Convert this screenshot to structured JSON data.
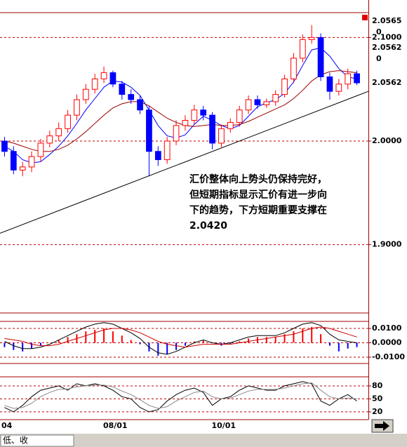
{
  "chart_data": [
    {
      "type": "candlestick",
      "categories": [
        "04",
        null,
        null,
        null,
        null,
        null,
        null,
        null,
        null,
        null,
        null,
        null,
        "08/01",
        null,
        null,
        null,
        null,
        null,
        null,
        null,
        null,
        null,
        null,
        null,
        "10/01",
        null,
        null,
        null,
        null,
        null,
        null,
        null,
        null,
        null,
        null,
        null,
        null,
        null,
        null,
        null
      ],
      "open": [
        2.0,
        1.99,
        1.972,
        1.975,
        1.985,
        1.998,
        2.005,
        2.012,
        2.025,
        2.04,
        2.05,
        2.06,
        2.066,
        2.055,
        2.045,
        2.04,
        2.03,
        1.99,
        1.982,
        2.0,
        2.015,
        2.02,
        2.03,
        2.025,
        1.998,
        2.012,
        2.018,
        2.03,
        2.04,
        2.035,
        2.038,
        2.045,
        2.06,
        2.08,
        2.098,
        2.1,
        2.062,
        2.048,
        2.055,
        2.065
      ],
      "high": [
        2.004,
        1.995,
        1.98,
        1.99,
        2.002,
        2.01,
        2.018,
        2.03,
        2.045,
        2.055,
        2.065,
        2.072,
        2.068,
        2.058,
        2.05,
        2.044,
        2.034,
        1.995,
        2.004,
        2.02,
        2.025,
        2.035,
        2.034,
        2.028,
        2.016,
        2.022,
        2.034,
        2.044,
        2.044,
        2.041,
        2.049,
        2.064,
        2.085,
        2.103,
        2.112,
        2.104,
        2.066,
        2.06,
        2.07,
        2.068
      ],
      "low": [
        1.985,
        1.968,
        1.966,
        1.97,
        1.98,
        1.994,
        2.0,
        2.008,
        2.02,
        2.036,
        2.046,
        2.056,
        2.052,
        2.04,
        2.036,
        2.026,
        1.966,
        1.976,
        1.978,
        1.996,
        2.01,
        2.016,
        2.02,
        1.992,
        1.994,
        2.008,
        2.014,
        2.026,
        2.031,
        2.032,
        2.034,
        2.042,
        2.056,
        2.076,
        2.094,
        2.058,
        2.04,
        2.044,
        2.05,
        2.054
      ],
      "close": [
        1.99,
        1.972,
        1.975,
        1.985,
        1.998,
        2.005,
        2.012,
        2.025,
        2.04,
        2.05,
        2.06,
        2.066,
        2.055,
        2.045,
        2.04,
        2.03,
        1.99,
        1.982,
        2.0,
        2.015,
        2.02,
        2.03,
        2.025,
        1.998,
        2.012,
        2.018,
        2.03,
        2.04,
        2.035,
        2.038,
        2.045,
        2.06,
        2.08,
        2.098,
        2.1,
        2.062,
        2.048,
        2.055,
        2.065,
        2.0562
      ],
      "up_color": "#ff0000",
      "down_color": "#0000ff",
      "lines": [
        {
          "color": "#0000ff",
          "values": [
            1.995,
            1.99,
            1.982,
            1.979,
            1.98,
            1.987,
            1.995,
            2.005,
            2.017,
            2.03,
            2.041,
            2.052,
            2.058,
            2.057,
            2.052,
            2.044,
            2.03,
            2.015,
            2.005,
            2.003,
            2.006,
            2.016,
            2.024,
            2.02,
            2.015,
            2.012,
            2.015,
            2.024,
            2.033,
            2.037,
            2.04,
            2.046,
            2.057,
            2.073,
            2.088,
            2.09,
            2.082,
            2.07,
            2.062,
            2.06
          ]
        },
        {
          "color": "#990000",
          "values": [
            2.0,
            1.998,
            1.995,
            1.992,
            1.99,
            1.99,
            1.992,
            1.996,
            2.002,
            2.009,
            2.017,
            2.025,
            2.032,
            2.036,
            2.038,
            2.038,
            2.034,
            2.028,
            2.022,
            2.018,
            2.015,
            2.014,
            2.015,
            2.016,
            2.015,
            2.015,
            2.016,
            2.019,
            2.023,
            2.027,
            2.031,
            2.035,
            2.041,
            2.049,
            2.058,
            2.064,
            2.067,
            2.068,
            2.067,
            2.066
          ]
        }
      ],
      "trendline": [
        1.911,
        2.048
      ],
      "ylim": [
        1.834,
        2.124
      ],
      "yticks": [
        {
          "value": 2.1,
          "label": "2.1000"
        },
        {
          "value": 2.0,
          "label": "2.0000"
        },
        {
          "value": 1.9,
          "label": "1.9000"
        }
      ],
      "readouts": [
        2.0565,
        0,
        2.0562,
        0,
        2.0562
      ],
      "annotation": [
        "汇价整体向上势头仍保持完好，",
        "但短期指标显示汇价有进一步向",
        "下的趋势，下方短期重要支撑在",
        "2.0420"
      ]
    },
    {
      "type": "macd",
      "histogram": [
        -0.003,
        -0.005,
        -0.006,
        -0.004,
        -0.002,
        0.0,
        0.002,
        0.004,
        0.006,
        0.008,
        0.009,
        0.01,
        0.008,
        0.005,
        0.002,
        -0.001,
        -0.006,
        -0.009,
        -0.008,
        -0.005,
        -0.002,
        0.001,
        0.002,
        0.0,
        -0.002,
        -0.001,
        0.001,
        0.003,
        0.004,
        0.004,
        0.004,
        0.006,
        0.008,
        0.01,
        0.011,
        0.006,
        -0.002,
        -0.006,
        -0.004,
        -0.003
      ],
      "up_color": "#ff0000",
      "down_color": "#0000ff",
      "lines": [
        {
          "color": "#000000",
          "values": [
            0.001,
            -0.002,
            -0.004,
            -0.004,
            -0.003,
            -0.001,
            0.002,
            0.005,
            0.008,
            0.011,
            0.013,
            0.014,
            0.013,
            0.01,
            0.007,
            0.003,
            -0.003,
            -0.007,
            -0.008,
            -0.006,
            -0.003,
            0.0,
            0.002,
            0.0,
            -0.001,
            0.0,
            0.002,
            0.004,
            0.005,
            0.005,
            0.005,
            0.007,
            0.01,
            0.013,
            0.014,
            0.012,
            0.006,
            0.002,
            0.001,
            0.0
          ]
        },
        {
          "color": "#cc0000",
          "values": [
            0.003,
            0.002,
            0.001,
            -0.001,
            -0.002,
            -0.002,
            -0.001,
            0.001,
            0.003,
            0.005,
            0.007,
            0.009,
            0.01,
            0.01,
            0.009,
            0.007,
            0.004,
            0.001,
            -0.001,
            -0.002,
            -0.003,
            -0.002,
            -0.001,
            -0.001,
            -0.001,
            -0.001,
            0.0,
            0.001,
            0.002,
            0.003,
            0.004,
            0.005,
            0.006,
            0.008,
            0.01,
            0.011,
            0.01,
            0.008,
            0.006,
            0.004
          ]
        }
      ],
      "ylim": [
        -0.0144,
        0.0149
      ],
      "yticks": [
        {
          "value": 0.01,
          "label": "0.0100"
        },
        {
          "value": 0,
          "label": "0.0000"
        },
        {
          "value": -0.01,
          "label": "-0.0100"
        }
      ]
    },
    {
      "type": "line",
      "series": [
        {
          "color": "#000000",
          "values": [
            30,
            20,
            35,
            55,
            70,
            75,
            80,
            70,
            85,
            80,
            85,
            80,
            70,
            55,
            50,
            30,
            20,
            25,
            45,
            60,
            70,
            75,
            65,
            35,
            50,
            55,
            70,
            80,
            75,
            70,
            70,
            80,
            85,
            90,
            85,
            45,
            35,
            50,
            60,
            45
          ]
        },
        {
          "color": "#888888",
          "values": [
            35,
            28,
            30,
            40,
            55,
            65,
            72,
            73,
            78,
            80,
            82,
            82,
            78,
            68,
            60,
            48,
            35,
            28,
            32,
            45,
            55,
            65,
            68,
            55,
            50,
            52,
            60,
            68,
            72,
            72,
            72,
            75,
            80,
            85,
            87,
            70,
            55,
            50,
            52,
            50
          ]
        }
      ],
      "ylim": [
        2,
        101
      ],
      "yticks": [
        80,
        50,
        20
      ]
    }
  ],
  "status_text": "低、收"
}
